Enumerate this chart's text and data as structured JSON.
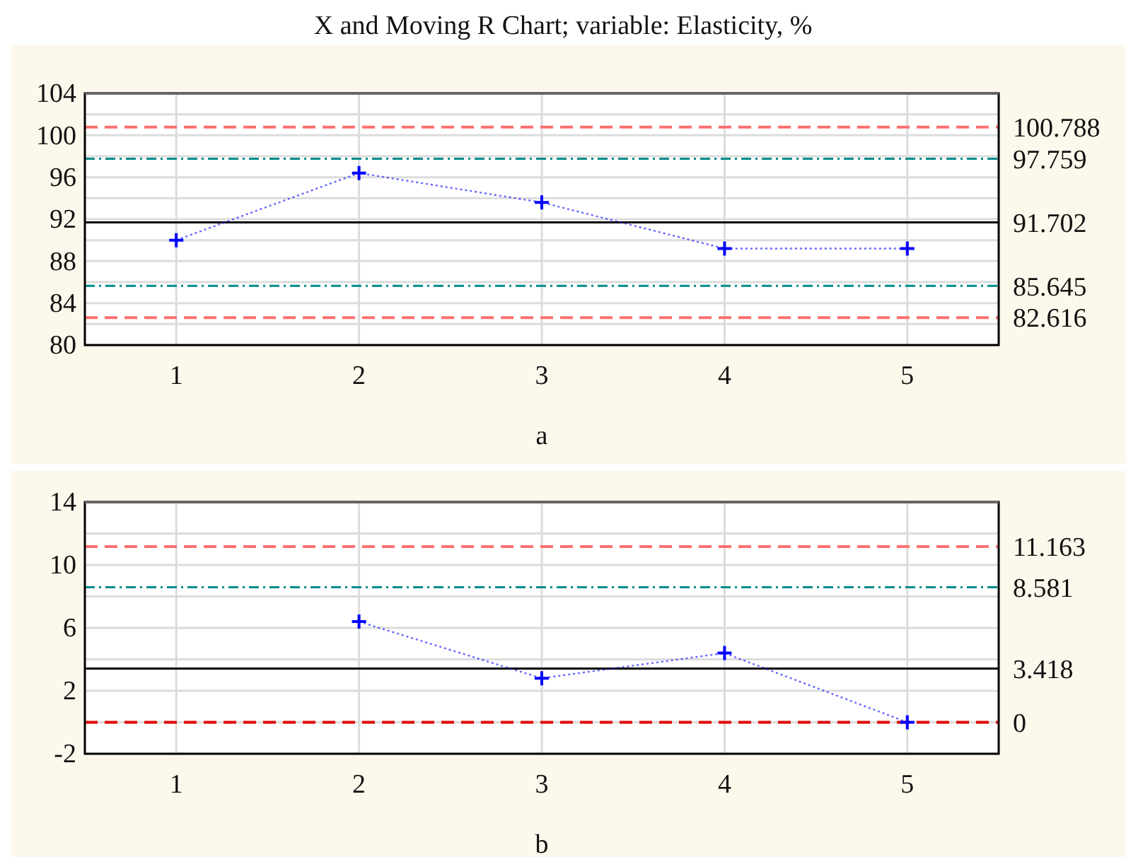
{
  "chart_data": [
    {
      "type": "line",
      "title": "X and Moving R Chart; variable: Elasticity, %",
      "xlabel": "a",
      "x": [
        1,
        2,
        3,
        4,
        5
      ],
      "series": [
        {
          "color": "#0000ff",
          "values": [
            90.0,
            96.4,
            93.6,
            89.2,
            89.2
          ]
        }
      ],
      "marker": "cross",
      "line_style": "dotted",
      "grid": true,
      "xlim": [
        0.5,
        5.5
      ],
      "xticks": [
        1,
        2,
        3,
        4,
        5
      ],
      "ylim": [
        80,
        104
      ],
      "yticks": [
        80,
        {
          "value": 82,
          "label": null
        },
        84,
        {
          "value": 86,
          "label": null
        },
        88,
        {
          "value": 90,
          "label": null
        },
        92,
        {
          "value": 94,
          "label": null
        },
        96,
        {
          "value": 98,
          "label": null
        },
        100,
        {
          "value": 102,
          "label": null
        },
        104
      ],
      "ref_lines": [
        {
          "axis": "y",
          "value": 100.788,
          "label": "100.788",
          "color": "#ff7070",
          "line_style": "dashed"
        },
        {
          "axis": "y",
          "value": 97.759,
          "label": "97.759",
          "color": "#008b8b",
          "line_style": "dashdot"
        },
        {
          "axis": "y",
          "value": 91.702,
          "label": "91.702",
          "color": "#000000",
          "line_style": "solid"
        },
        {
          "axis": "y",
          "value": 85.645,
          "label": "85.645",
          "color": "#008b8b",
          "line_style": "dashdot"
        },
        {
          "axis": "y",
          "value": 82.616,
          "label": "82.616",
          "color": "#ff7070",
          "line_style": "dashed"
        }
      ]
    },
    {
      "type": "line",
      "xlabel": "b",
      "x": [
        2,
        3,
        4,
        5
      ],
      "series": [
        {
          "color": "#0000ff",
          "values": [
            6.4,
            2.8,
            4.4,
            0
          ]
        }
      ],
      "marker": "cross",
      "line_style": "dotted",
      "grid": true,
      "xlim": [
        0.5,
        5.5
      ],
      "xticks": [
        1,
        2,
        3,
        4,
        5
      ],
      "ylim": [
        -2,
        14
      ],
      "yticks": [
        -2,
        {
          "value": 0,
          "label": null
        },
        2,
        {
          "value": 4,
          "label": null
        },
        6,
        {
          "value": 8,
          "label": null
        },
        10,
        {
          "value": 12,
          "label": null
        },
        14
      ],
      "ref_lines": [
        {
          "axis": "y",
          "value": 11.163,
          "label": "11.163",
          "color": "#ff7070",
          "line_style": "dashed"
        },
        {
          "axis": "y",
          "value": 8.581,
          "label": "8.581",
          "color": "#008b8b",
          "line_style": "dashdot"
        },
        {
          "axis": "y",
          "value": 3.418,
          "label": "3.418",
          "color": "#000000",
          "line_style": "solid"
        },
        {
          "axis": "y",
          "value": 0,
          "label": "0",
          "color": "#e00000",
          "line_style": "dashed"
        }
      ]
    }
  ]
}
